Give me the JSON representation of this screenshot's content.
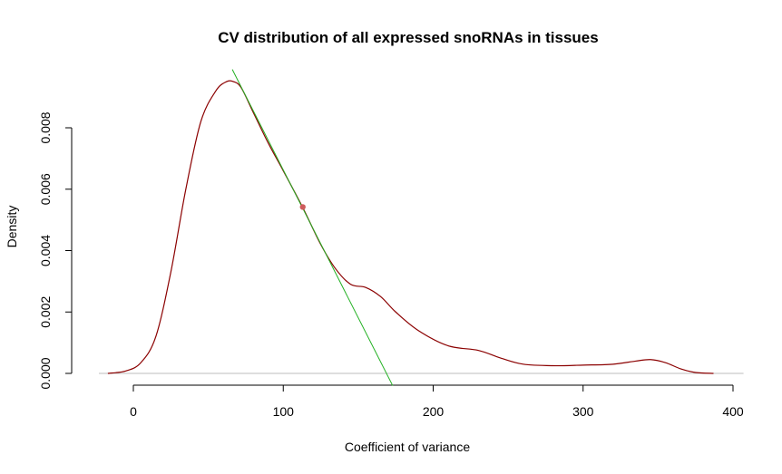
{
  "chart_data": {
    "type": "line",
    "title": "CV distribution of all expressed snoRNAs in tissues",
    "xlabel": "Coefficient of variance",
    "ylabel": "Density",
    "xlim": [
      -25,
      405
    ],
    "ylim": [
      -0.00042,
      0.0099
    ],
    "x_ticks": [
      0,
      100,
      200,
      300,
      400
    ],
    "y_ticks": [
      0.0,
      0.002,
      0.004,
      0.006,
      0.008
    ],
    "x_tick_labels": [
      "0",
      "100",
      "200",
      "300",
      "400"
    ],
    "y_tick_labels": [
      "0.000",
      "0.002",
      "0.004",
      "0.006",
      "0.008"
    ],
    "grid": false,
    "legend": "none",
    "series": [
      {
        "kind": "density-curve",
        "color": "#8B0000",
        "x": [
          -17,
          -5,
          5,
          15,
          25,
          35,
          45,
          55,
          62,
          67,
          72,
          80,
          90,
          100,
          113,
          125,
          135,
          145,
          155,
          165,
          175,
          190,
          210,
          230,
          245,
          260,
          280,
          300,
          320,
          335,
          345,
          355,
          365,
          375,
          387
        ],
        "y": [
          0.0,
          8e-05,
          0.00035,
          0.0012,
          0.0033,
          0.006,
          0.0082,
          0.0092,
          0.0095,
          0.0095,
          0.0093,
          0.0085,
          0.0075,
          0.0066,
          0.0054,
          0.0042,
          0.0034,
          0.0029,
          0.0028,
          0.0025,
          0.002,
          0.0014,
          0.0009,
          0.00075,
          0.0005,
          0.0003,
          0.00025,
          0.00027,
          0.0003,
          0.0004,
          0.00045,
          0.00035,
          0.00015,
          3e-05,
          0.0
        ]
      }
    ],
    "baseline": {
      "y": 0,
      "color": "#bebebe"
    },
    "tangent_line": {
      "color": "#22b022",
      "x": [
        66,
        173
      ],
      "y": [
        0.0099,
        -0.0004
      ]
    },
    "highlight_point": {
      "color": "#cd5c5c",
      "x": 113,
      "y": 0.00542
    }
  }
}
